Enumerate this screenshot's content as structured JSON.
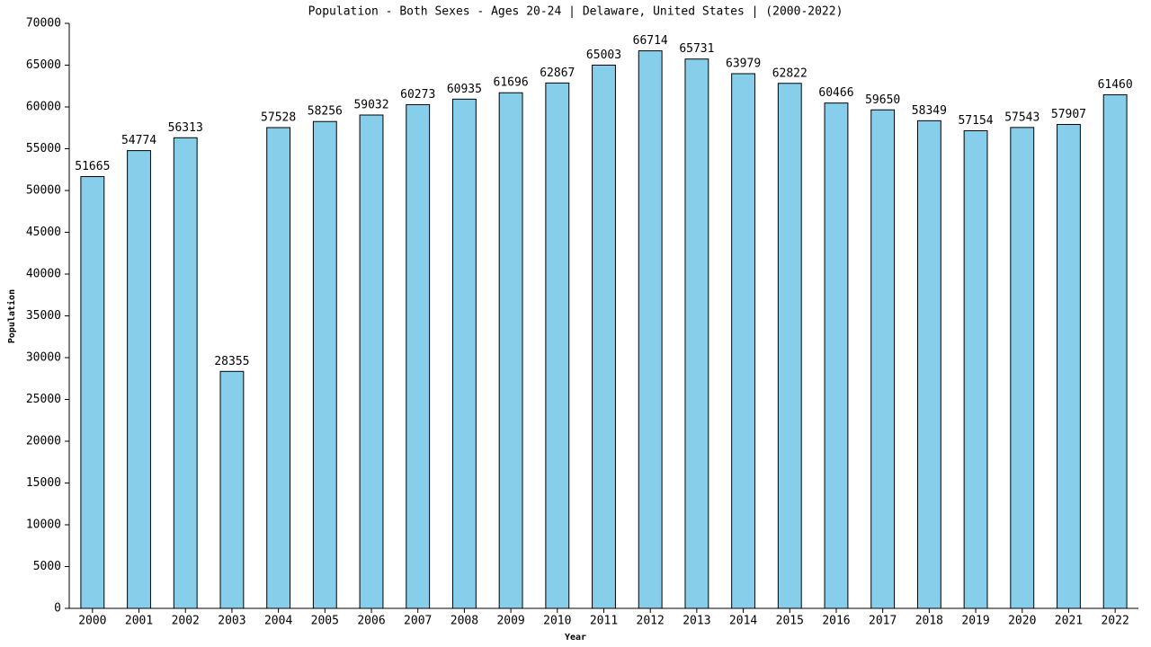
{
  "chart_data": {
    "type": "bar",
    "title": "Population - Both Sexes - Ages 20-24 | Delaware, United States |  (2000-2022)",
    "x_label": "Year",
    "y_label": "Population",
    "categories": [
      "2000",
      "2001",
      "2002",
      "2003",
      "2004",
      "2005",
      "2006",
      "2007",
      "2008",
      "2009",
      "2010",
      "2011",
      "2012",
      "2013",
      "2014",
      "2015",
      "2016",
      "2017",
      "2018",
      "2019",
      "2020",
      "2021",
      "2022"
    ],
    "values": [
      51665,
      54774,
      56313,
      28355,
      57528,
      58256,
      59032,
      60273,
      60935,
      61696,
      62867,
      65003,
      66714,
      65731,
      63979,
      62822,
      60466,
      59650,
      58349,
      57154,
      57543,
      57907,
      61460
    ],
    "color": "#87ceeb",
    "ylim": [
      0,
      70000
    ],
    "yticks": [
      0,
      5000,
      10000,
      15000,
      20000,
      25000,
      30000,
      35000,
      40000,
      45000,
      50000,
      55000,
      60000,
      65000,
      70000
    ],
    "grid": false
  }
}
